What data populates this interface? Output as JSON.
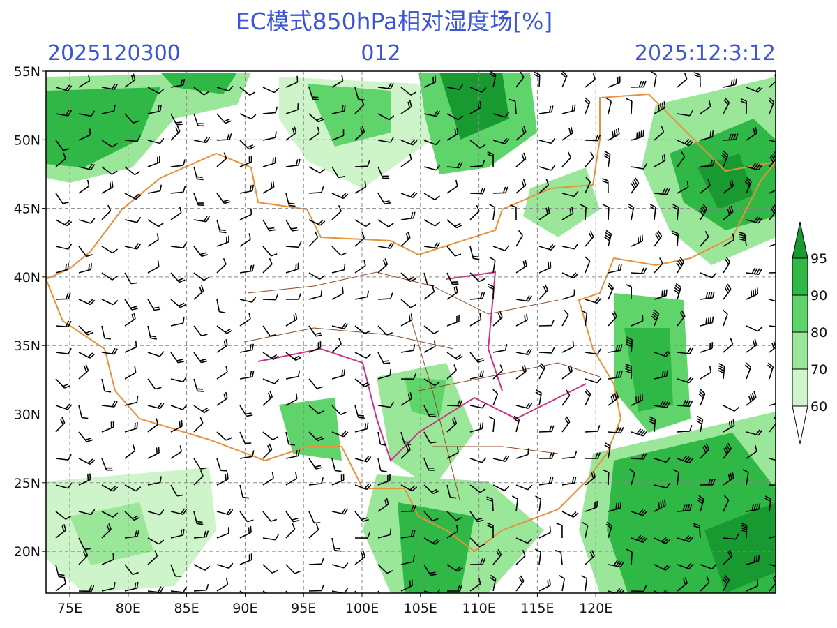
{
  "header": {
    "title": "EC模式850hPa相对湿度场[%]",
    "init_time": "2025120300",
    "lead": "012",
    "valid_time": "2025:12:3:12"
  },
  "lat_labels": [
    "55N",
    "50N",
    "45N",
    "40N",
    "35N",
    "30N",
    "25N",
    "20N"
  ],
  "lon_labels": [
    "75E",
    "80E",
    "85E",
    "90E",
    "95E",
    "100E",
    "105E",
    "110E",
    "115E",
    "120E"
  ],
  "colorbar": {
    "labels": [
      95,
      90,
      80,
      70,
      60
    ]
  }
}
